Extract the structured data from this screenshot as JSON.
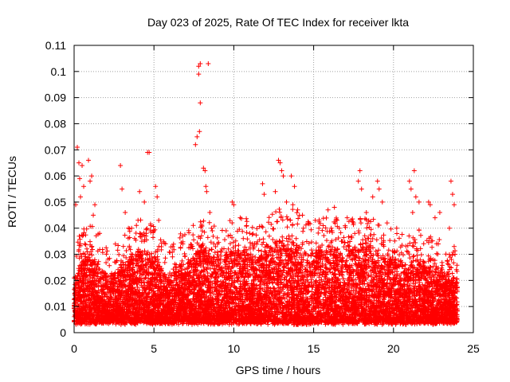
{
  "chart_data": {
    "type": "scatter",
    "title": "Day 023 of 2025, Rate Of TEC Index for receiver lkta",
    "xlabel": "GPS time / hours",
    "ylabel": "ROTI / TECUs",
    "xlim": [
      0,
      25
    ],
    "ylim": [
      0,
      0.11
    ],
    "x_ticks": [
      0,
      5,
      10,
      15,
      20,
      25
    ],
    "x_tick_labels": [
      "0",
      "5",
      "10",
      "15",
      "20",
      "25"
    ],
    "y_ticks": [
      0,
      0.01,
      0.02,
      0.03,
      0.04,
      0.05,
      0.06,
      0.07,
      0.08,
      0.09,
      0.1,
      0.11
    ],
    "y_tick_labels": [
      "0",
      "0.01",
      "0.02",
      "0.03",
      "0.04",
      "0.05",
      "0.06",
      "0.07",
      "0.08",
      "0.09",
      "0.1",
      "0.11"
    ],
    "grid": true,
    "marker": "plus",
    "colors": {
      "series": "#ff0000",
      "grid": "#a0a0a0",
      "axis": "#000000"
    },
    "series": [
      {
        "name": "ROTI",
        "density_note": "dense band of points between ~0.005 and ~0.03 across 0-24 h",
        "band_peaks": [
          [
            0.0,
            0.02
          ],
          [
            0.5,
            0.028
          ],
          [
            1.0,
            0.03
          ],
          [
            1.5,
            0.026
          ],
          [
            2.0,
            0.022
          ],
          [
            2.5,
            0.024
          ],
          [
            3.0,
            0.026
          ],
          [
            3.5,
            0.028
          ],
          [
            4.0,
            0.032
          ],
          [
            4.5,
            0.03
          ],
          [
            5.0,
            0.03
          ],
          [
            5.5,
            0.024
          ],
          [
            6.0,
            0.022
          ],
          [
            6.5,
            0.026
          ],
          [
            7.0,
            0.026
          ],
          [
            7.5,
            0.03
          ],
          [
            8.0,
            0.034
          ],
          [
            8.5,
            0.03
          ],
          [
            9.0,
            0.028
          ],
          [
            9.5,
            0.03
          ],
          [
            10.0,
            0.032
          ],
          [
            10.5,
            0.034
          ],
          [
            11.0,
            0.03
          ],
          [
            11.5,
            0.028
          ],
          [
            12.0,
            0.032
          ],
          [
            12.5,
            0.034
          ],
          [
            13.0,
            0.036
          ],
          [
            13.5,
            0.036
          ],
          [
            14.0,
            0.034
          ],
          [
            14.5,
            0.03
          ],
          [
            15.0,
            0.032
          ],
          [
            15.5,
            0.032
          ],
          [
            16.0,
            0.034
          ],
          [
            16.5,
            0.032
          ],
          [
            17.0,
            0.03
          ],
          [
            17.5,
            0.032
          ],
          [
            18.0,
            0.034
          ],
          [
            18.5,
            0.034
          ],
          [
            19.0,
            0.03
          ],
          [
            19.5,
            0.028
          ],
          [
            20.0,
            0.028
          ],
          [
            20.5,
            0.026
          ],
          [
            21.0,
            0.026
          ],
          [
            21.5,
            0.028
          ],
          [
            22.0,
            0.026
          ],
          [
            22.5,
            0.024
          ],
          [
            23.0,
            0.024
          ],
          [
            23.5,
            0.022
          ],
          [
            24.0,
            0.02
          ]
        ],
        "outliers": [
          [
            0.1,
            0.049
          ],
          [
            0.2,
            0.071
          ],
          [
            0.3,
            0.065
          ],
          [
            0.35,
            0.059
          ],
          [
            0.4,
            0.052
          ],
          [
            0.5,
            0.064
          ],
          [
            0.6,
            0.056
          ],
          [
            0.9,
            0.066
          ],
          [
            1.0,
            0.058
          ],
          [
            1.1,
            0.06
          ],
          [
            1.3,
            0.049
          ],
          [
            1.2,
            0.045
          ],
          [
            1.6,
            0.038
          ],
          [
            2.9,
            0.064
          ],
          [
            3.0,
            0.055
          ],
          [
            3.2,
            0.046
          ],
          [
            3.4,
            0.04
          ],
          [
            3.6,
            0.04
          ],
          [
            4.1,
            0.054
          ],
          [
            4.4,
            0.05
          ],
          [
            4.6,
            0.069
          ],
          [
            4.7,
            0.069
          ],
          [
            4.8,
            0.041
          ],
          [
            5.1,
            0.056
          ],
          [
            5.2,
            0.052
          ],
          [
            5.3,
            0.043
          ],
          [
            6.8,
            0.037
          ],
          [
            7.6,
            0.072
          ],
          [
            7.7,
            0.075
          ],
          [
            7.8,
            0.102
          ],
          [
            7.8,
            0.099
          ],
          [
            7.9,
            0.103
          ],
          [
            7.9,
            0.088
          ],
          [
            7.85,
            0.077
          ],
          [
            8.1,
            0.063
          ],
          [
            8.2,
            0.062
          ],
          [
            8.25,
            0.056
          ],
          [
            8.3,
            0.054
          ],
          [
            8.4,
            0.103
          ],
          [
            8.5,
            0.046
          ],
          [
            8.6,
            0.04
          ],
          [
            9.9,
            0.05
          ],
          [
            10.0,
            0.049
          ],
          [
            10.4,
            0.044
          ],
          [
            10.8,
            0.041
          ],
          [
            11.0,
            0.038
          ],
          [
            11.8,
            0.057
          ],
          [
            11.9,
            0.053
          ],
          [
            12.6,
            0.054
          ],
          [
            12.8,
            0.066
          ],
          [
            12.9,
            0.065
          ],
          [
            13.0,
            0.062
          ],
          [
            13.1,
            0.06
          ],
          [
            13.3,
            0.05
          ],
          [
            13.6,
            0.06
          ],
          [
            13.7,
            0.049
          ],
          [
            13.8,
            0.056
          ],
          [
            14.0,
            0.047
          ],
          [
            14.3,
            0.045
          ],
          [
            14.7,
            0.042
          ],
          [
            15.1,
            0.043
          ],
          [
            15.6,
            0.041
          ],
          [
            15.9,
            0.047
          ],
          [
            16.1,
            0.04
          ],
          [
            16.3,
            0.048
          ],
          [
            16.6,
            0.04
          ],
          [
            17.1,
            0.044
          ],
          [
            17.5,
            0.042
          ],
          [
            17.8,
            0.058
          ],
          [
            17.9,
            0.062
          ],
          [
            18.0,
            0.055
          ],
          [
            18.3,
            0.046
          ],
          [
            18.7,
            0.052
          ],
          [
            19.0,
            0.058
          ],
          [
            19.1,
            0.055
          ],
          [
            19.3,
            0.05
          ],
          [
            19.6,
            0.042
          ],
          [
            20.2,
            0.04
          ],
          [
            21.0,
            0.058
          ],
          [
            21.1,
            0.055
          ],
          [
            21.2,
            0.046
          ],
          [
            21.3,
            0.062
          ],
          [
            21.4,
            0.052
          ],
          [
            21.6,
            0.05
          ],
          [
            22.2,
            0.05
          ],
          [
            22.3,
            0.049
          ],
          [
            22.6,
            0.044
          ],
          [
            22.9,
            0.046
          ],
          [
            23.5,
            0.04
          ],
          [
            23.6,
            0.058
          ],
          [
            23.7,
            0.053
          ],
          [
            23.8,
            0.049
          ],
          [
            23.8,
            0.033
          ]
        ]
      }
    ]
  }
}
